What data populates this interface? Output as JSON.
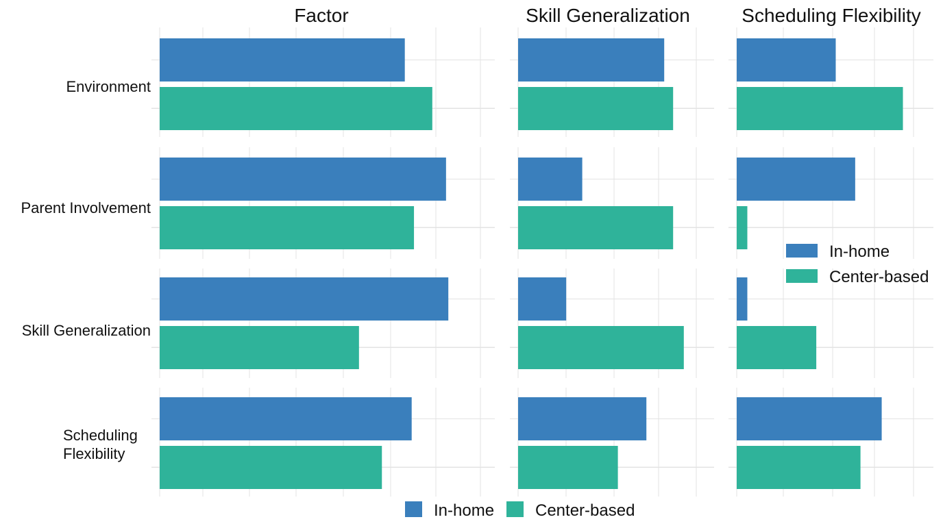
{
  "chart_data": {
    "type": "bar",
    "orientation": "horizontal",
    "layout": "faceted",
    "grid": true,
    "colors": {
      "In-home": "#3a7fbc",
      "Center-based": "#2fb39a"
    },
    "row_labels": [
      [
        "Environment"
      ],
      [
        "Parent Involvement"
      ],
      [
        "Skill Generalization"
      ],
      [
        "Scheduling",
        "Flexibility"
      ]
    ],
    "categories": [
      "Environment",
      "Parent Involvement",
      "Skill Generalization",
      "Scheduling Flexibility"
    ],
    "panels": [
      {
        "title": "Factor",
        "xlim": [
          0,
          7
        ],
        "series": [
          {
            "name": "In-home",
            "values": [
              5.35,
              6.25,
              6.3,
              5.5
            ]
          },
          {
            "name": "Center-based",
            "values": [
              5.95,
              5.55,
              4.35,
              4.85
            ]
          }
        ]
      },
      {
        "title": "Skill Generalization",
        "xlim": [
          0,
          5
        ],
        "series": [
          {
            "name": "In-home",
            "values": [
              4.1,
              1.8,
              1.35,
              3.6
            ]
          },
          {
            "name": "Center-based",
            "values": [
              4.35,
              4.35,
              4.65,
              2.8
            ]
          }
        ]
      },
      {
        "title": "Scheduling Flexibility",
        "xlim": [
          0,
          5
        ],
        "series": [
          {
            "name": "In-home",
            "values": [
              2.8,
              3.35,
              0.3,
              4.1
            ]
          },
          {
            "name": "Center-based",
            "values": [
              4.7,
              0.3,
              2.25,
              3.5
            ]
          }
        ]
      }
    ],
    "legends": [
      {
        "placement": "bottom-center",
        "entries": [
          "In-home",
          "Center-based"
        ]
      },
      {
        "placement": "right-middle",
        "entries": [
          "In-home",
          "Center-based"
        ]
      }
    ]
  }
}
